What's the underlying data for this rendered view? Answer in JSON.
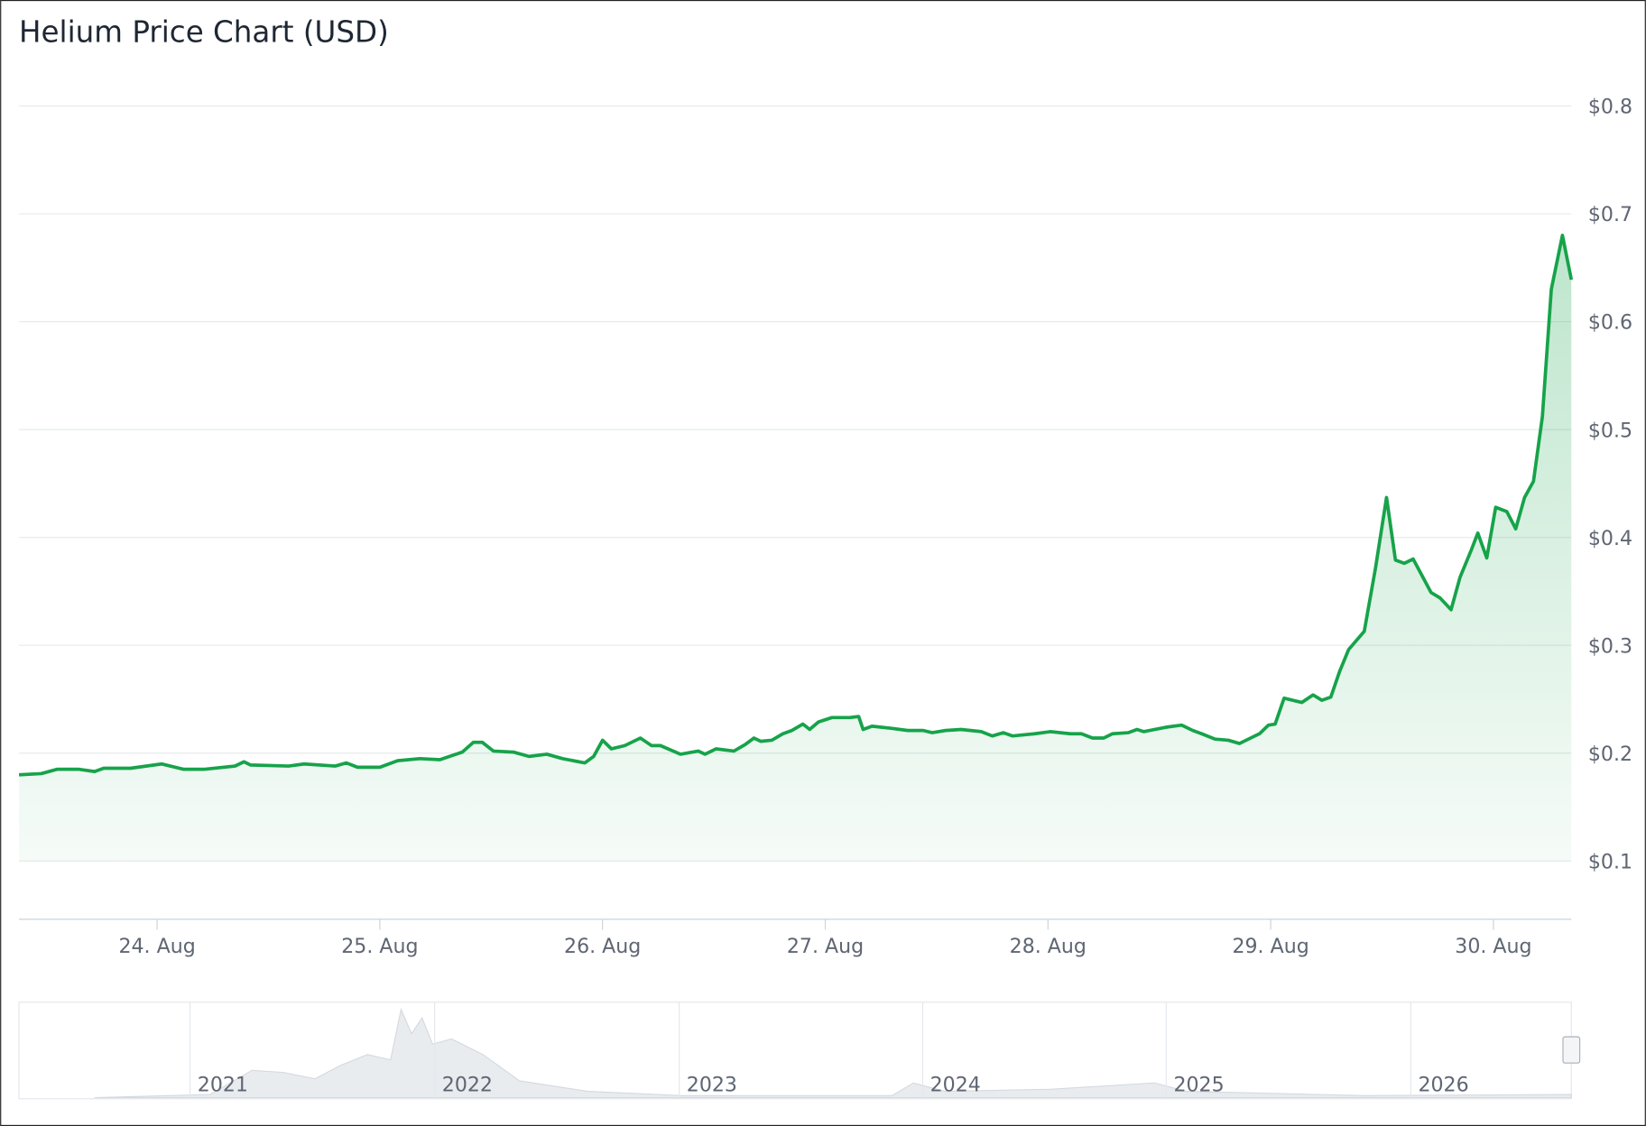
{
  "chart_data": {
    "type": "line",
    "title": "Helium Price Chart (USD)",
    "x": [
      23.38,
      23.48,
      23.55,
      23.65,
      23.72,
      23.76,
      23.88,
      24.02,
      24.12,
      24.21,
      24.35,
      24.39,
      24.42,
      24.59,
      24.66,
      24.8,
      24.85,
      24.9,
      25.0,
      25.08,
      25.18,
      25.27,
      25.37,
      25.42,
      25.46,
      25.51,
      25.6,
      25.67,
      25.75,
      25.82,
      25.92,
      25.96,
      26.0,
      26.04,
      26.1,
      26.17,
      26.22,
      26.26,
      26.35,
      26.43,
      26.46,
      26.51,
      26.59,
      26.64,
      26.68,
      26.71,
      26.76,
      26.81,
      26.85,
      26.9,
      26.93,
      26.97,
      27.03,
      27.11,
      27.15,
      27.17,
      27.21,
      27.3,
      27.37,
      27.44,
      27.48,
      27.54,
      27.61,
      27.7,
      27.75,
      27.8,
      27.84,
      27.94,
      28.01,
      28.1,
      28.15,
      28.2,
      28.25,
      28.29,
      28.36,
      28.4,
      28.43,
      28.53,
      28.6,
      28.65,
      28.69,
      28.75,
      28.81,
      28.86,
      28.91,
      28.95,
      28.99,
      29.02,
      29.06,
      29.14,
      29.19,
      29.23,
      29.27,
      29.31,
      29.35,
      29.42,
      29.47,
      29.52,
      29.56,
      29.6,
      29.64,
      29.72,
      29.76,
      29.81,
      29.85,
      29.9,
      29.93,
      29.97,
      30.01,
      30.06,
      30.1,
      30.14,
      30.18,
      30.22,
      30.26,
      30.31,
      30.35
    ],
    "series": [
      {
        "color": "#16a34a",
        "values": [
          0.18,
          0.181,
          0.185,
          0.185,
          0.183,
          0.186,
          0.186,
          0.19,
          0.185,
          0.185,
          0.188,
          0.192,
          0.189,
          0.188,
          0.19,
          0.188,
          0.191,
          0.187,
          0.187,
          0.193,
          0.195,
          0.194,
          0.201,
          0.21,
          0.21,
          0.202,
          0.201,
          0.197,
          0.199,
          0.195,
          0.191,
          0.197,
          0.212,
          0.204,
          0.207,
          0.214,
          0.207,
          0.207,
          0.199,
          0.202,
          0.199,
          0.204,
          0.202,
          0.208,
          0.214,
          0.211,
          0.212,
          0.218,
          0.221,
          0.227,
          0.222,
          0.229,
          0.233,
          0.233,
          0.234,
          0.222,
          0.225,
          0.223,
          0.221,
          0.221,
          0.219,
          0.221,
          0.222,
          0.22,
          0.216,
          0.219,
          0.216,
          0.218,
          0.22,
          0.218,
          0.218,
          0.214,
          0.214,
          0.218,
          0.219,
          0.222,
          0.22,
          0.224,
          0.226,
          0.221,
          0.218,
          0.213,
          0.212,
          0.209,
          0.214,
          0.218,
          0.226,
          0.227,
          0.251,
          0.247,
          0.254,
          0.249,
          0.252,
          0.276,
          0.296,
          0.313,
          0.371,
          0.437,
          0.379,
          0.376,
          0.38,
          0.349,
          0.344,
          0.333,
          0.363,
          0.388,
          0.404,
          0.381,
          0.428,
          0.424,
          0.408,
          0.437,
          0.452,
          0.512,
          0.63,
          0.68,
          0.639
        ]
      }
    ],
    "xlim": [
      23.38,
      30.35
    ],
    "xticks": [
      {
        "value": 24,
        "label": "24. Aug"
      },
      {
        "value": 25,
        "label": "25. Aug"
      },
      {
        "value": 26,
        "label": "26. Aug"
      },
      {
        "value": 27,
        "label": "27. Aug"
      },
      {
        "value": 28,
        "label": "28. Aug"
      },
      {
        "value": 29,
        "label": "29. Aug"
      },
      {
        "value": 30,
        "label": "30. Aug"
      }
    ],
    "ylim": [
      0.046,
      0.8
    ],
    "yticks": [
      {
        "value": 0.1,
        "label": "$0.1"
      },
      {
        "value": 0.2,
        "label": "$0.2"
      },
      {
        "value": 0.3,
        "label": "$0.3"
      },
      {
        "value": 0.4,
        "label": "$0.4"
      },
      {
        "value": 0.5,
        "label": "$0.5"
      },
      {
        "value": 0.6,
        "label": "$0.6"
      },
      {
        "value": 0.7,
        "label": "$0.7"
      },
      {
        "value": 0.8,
        "label": "$0.8"
      }
    ],
    "grid": true
  },
  "navigator": {
    "labels": [
      "2021",
      "2022",
      "2023",
      "2024",
      "2025",
      "2026"
    ]
  }
}
